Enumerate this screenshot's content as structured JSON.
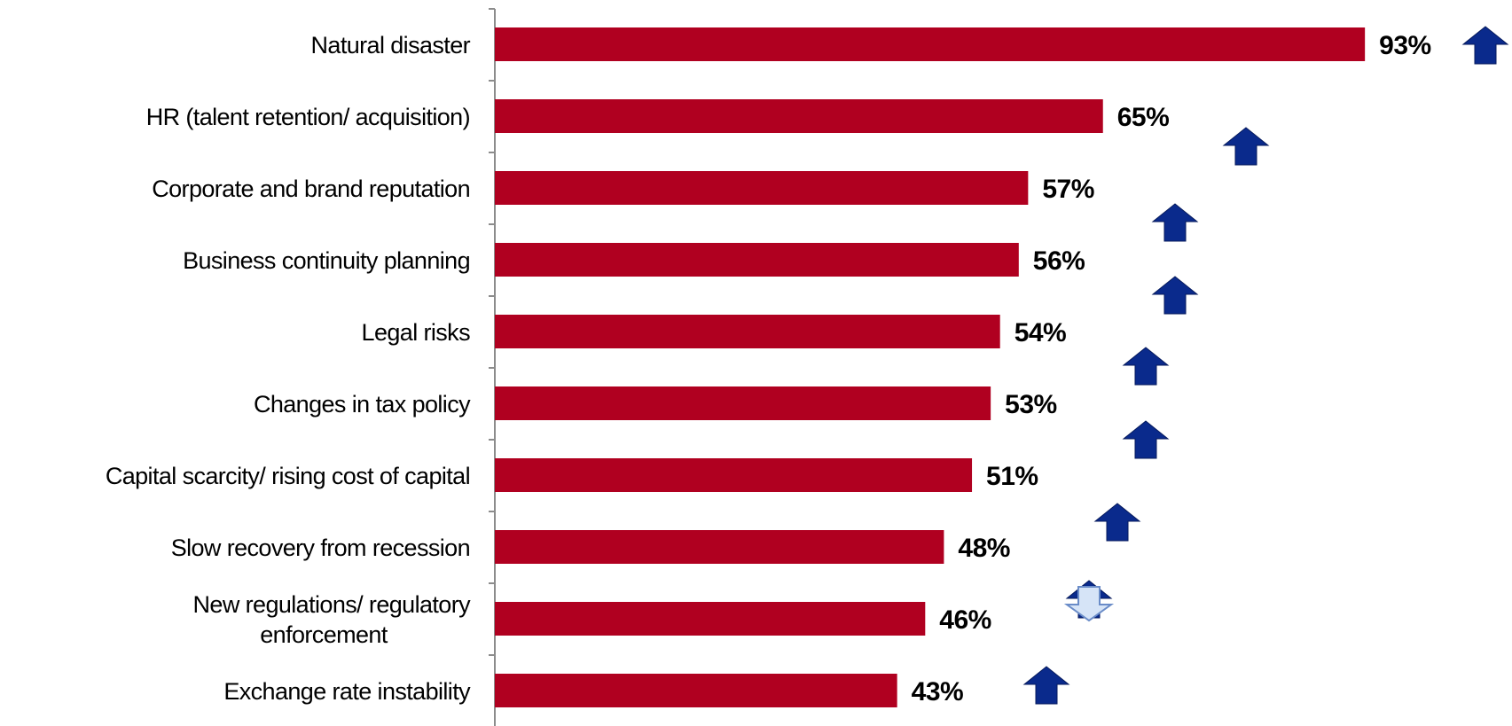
{
  "chart_data": {
    "type": "bar",
    "orientation": "horizontal",
    "categories": [
      [
        "Natural disaster"
      ],
      [
        "HR (talent retention/ acquisition)"
      ],
      [
        "Corporate and brand reputation"
      ],
      [
        "Business continuity planning"
      ],
      [
        "Legal risks"
      ],
      [
        "Changes in tax policy"
      ],
      [
        "Capital scarcity/ rising cost of capital"
      ],
      [
        "Slow recovery from recession"
      ],
      [
        "New regulations/ regulatory",
        "enforcement"
      ],
      [
        "Exchange rate instability"
      ]
    ],
    "values": [
      93,
      65,
      57,
      56,
      54,
      53,
      51,
      48,
      46,
      43
    ],
    "value_labels": [
      "93%",
      "65%",
      "57%",
      "56%",
      "54%",
      "53%",
      "51%",
      "48%",
      "46%",
      "43%"
    ],
    "trend": [
      "up",
      "up",
      "up",
      "up",
      "up",
      "up",
      "up",
      "up",
      "down",
      "up"
    ],
    "xlim": [
      0,
      100
    ],
    "grid": false,
    "legend": "none",
    "colors": {
      "bar": "#B00020",
      "up_arrow": "#0A2A8C",
      "down_arrow_fill": "#D6E4F7",
      "down_arrow_stroke": "#6A8CC8",
      "axis": "#8C8C8C"
    },
    "icons": {
      "up": "up-arrow-icon",
      "down": "down-arrow-icon"
    }
  }
}
